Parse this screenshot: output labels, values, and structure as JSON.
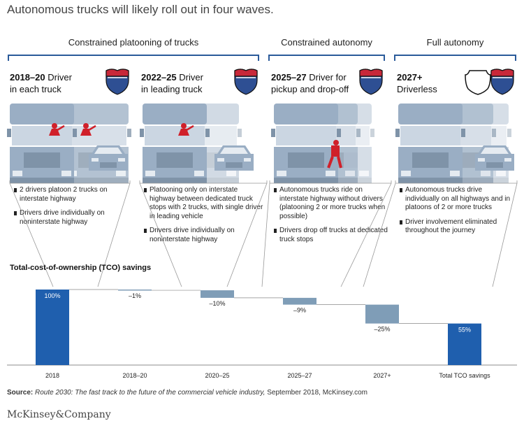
{
  "title": "Autonomous trucks will likely roll out in four waves.",
  "groups": [
    {
      "label": "Constrained platooning of trucks"
    },
    {
      "label": "Constrained autonomy"
    },
    {
      "label": "Full autonomy"
    }
  ],
  "waves": [
    {
      "years": "2018–20",
      "head_rest": " Driver",
      "head_line2": "in each truck",
      "bullets": [
        "2 drivers platoon 2 trucks on interstate highway",
        "Drivers drive individually on noninterstate highway"
      ]
    },
    {
      "years": "2022–25",
      "head_rest": " Driver",
      "head_line2": "in leading truck",
      "bullets": [
        "Platooning only on interstate highway between dedicated truck stops with 2 trucks, with single driver in leading vehicle",
        "Drivers drive individually on noninterstate highway"
      ]
    },
    {
      "years": "2025–27",
      "head_rest": " Driver for",
      "head_line2": "pickup and drop-off",
      "bullets": [
        "Autonomous trucks ride on interstate highway without drivers (platooning 2 or more trucks when possible)",
        "Drivers drop off trucks at dedicated truck stops"
      ]
    },
    {
      "years": "2027+",
      "head_rest": "",
      "head_line2": "Driverless",
      "bullets": [
        "Autonomous trucks drive individually on all highways and in platoons of 2 or more trucks",
        "Driver involvement eliminated throughout the journey"
      ]
    }
  ],
  "icons": [
    "interstate-shield-icon",
    "us-highway-shield-icon",
    "truck-icon",
    "car-icon",
    "driver-icon"
  ],
  "chart_data": {
    "type": "bar",
    "subtype": "waterfall",
    "ylabel": "Total-cost-of-ownership (TCO) savings",
    "categories": [
      "2018",
      "2018–20",
      "2020–25",
      "2025–27",
      "2027+",
      "Total TCO savings"
    ],
    "values": [
      100,
      -1,
      -10,
      -9,
      -25,
      55
    ],
    "value_labels": [
      "100%",
      "–1%",
      "–10%",
      "–9%",
      "–25%",
      "55%"
    ],
    "kinds": [
      "total",
      "delta",
      "delta",
      "delta",
      "delta",
      "total"
    ],
    "ylim": [
      0,
      105
    ],
    "grid": false,
    "legend": "none"
  },
  "colors": {
    "total_bar": "#1f5fae",
    "delta_bar": "#7f9db7",
    "bracket": "#2a5a9a",
    "truck": "#9aaec4",
    "truck_light": "#c5d2df",
    "driver": "#d0202a",
    "shield_blue": "#2e4f93",
    "shield_red": "#c8283a"
  },
  "source": {
    "label": "Source:",
    "italic": "Route 2030: The fast track to the future of the commercial vehicle industry,",
    "rest": " September 2018, McKinsey.com"
  },
  "logo": "McKinsey&Company"
}
